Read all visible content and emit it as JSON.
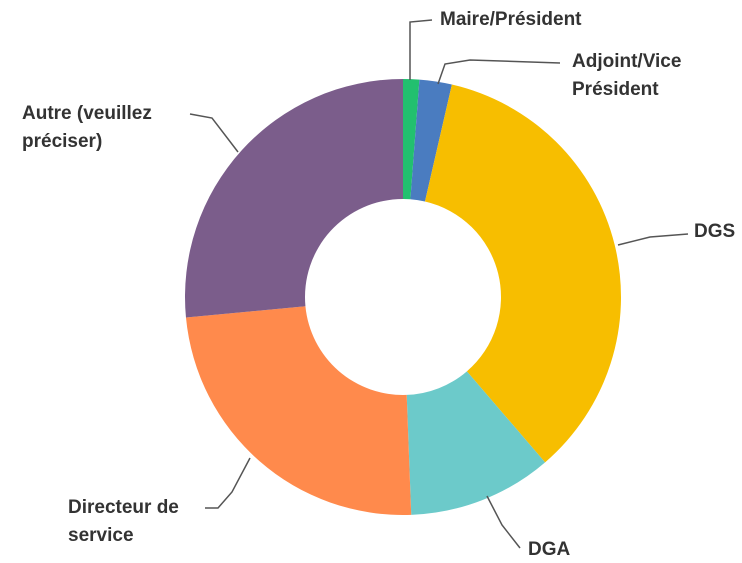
{
  "chart_data": {
    "type": "donut",
    "categories": [
      "Maire/Président",
      "Adjoint/Vice Président",
      "DGS",
      "DGA",
      "Directeur de service",
      "Autre (veuillez préciser)"
    ],
    "values": [
      1.2,
      2.4,
      35.1,
      10.7,
      24.1,
      26.5
    ],
    "colors": [
      "#22c06f",
      "#4a7cc0",
      "#f7be00",
      "#6ccaca",
      "#ff8a4c",
      "#7b5d8b"
    ]
  }
}
